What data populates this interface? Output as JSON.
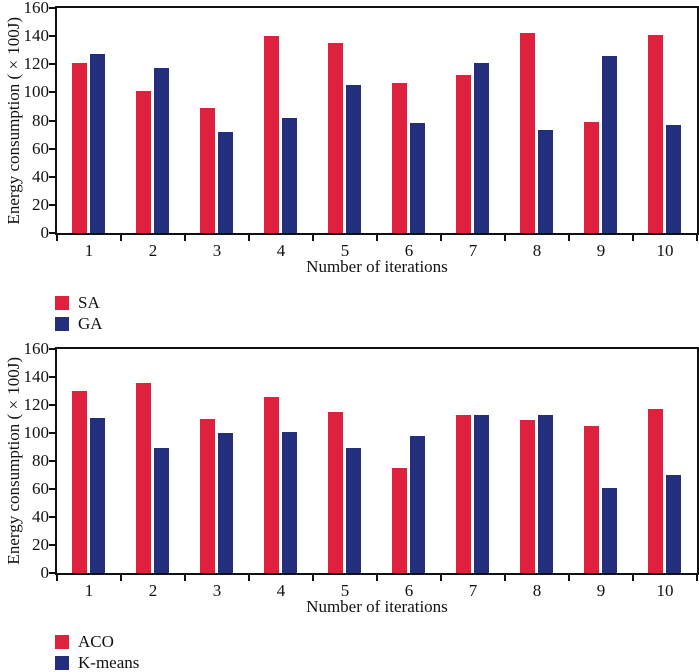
{
  "colors": {
    "red": "#e0203d",
    "blue": "#232e7d",
    "axis": "#111111",
    "background": "#ffffff"
  },
  "chart_data": [
    {
      "type": "bar",
      "title": "",
      "categories": [
        "1",
        "2",
        "3",
        "4",
        "5",
        "6",
        "7",
        "8",
        "9",
        "10"
      ],
      "series": [
        {
          "name": "SA",
          "color": "#e0203d",
          "values": [
            121,
            101,
            89,
            140,
            135,
            107,
            112,
            142,
            79,
            141
          ]
        },
        {
          "name": "GA",
          "color": "#232e7d",
          "values": [
            127,
            117,
            72,
            82,
            105,
            78,
            121,
            73,
            126,
            77
          ]
        }
      ],
      "xlabel": "Number of iterations",
      "ylabel": "Energy consumption (×100J)",
      "ylim": [
        0,
        160
      ],
      "ytick_step": 20,
      "grid": false,
      "legend_position": "below-left"
    },
    {
      "type": "bar",
      "title": "",
      "categories": [
        "1",
        "2",
        "3",
        "4",
        "5",
        "6",
        "7",
        "8",
        "9",
        "10"
      ],
      "series": [
        {
          "name": "ACO",
          "color": "#e0203d",
          "values": [
            130,
            136,
            110,
            126,
            115,
            75,
            113,
            109,
            105,
            117
          ]
        },
        {
          "name": "K-means",
          "color": "#232e7d",
          "values": [
            111,
            89,
            100,
            101,
            89,
            98,
            113,
            113,
            61,
            70
          ]
        }
      ],
      "xlabel": "Number of iterations",
      "ylabel": "Energy consumption (×100J)",
      "ylim": [
        0,
        160
      ],
      "ytick_step": 20,
      "grid": false,
      "legend_position": "below-left"
    }
  ]
}
